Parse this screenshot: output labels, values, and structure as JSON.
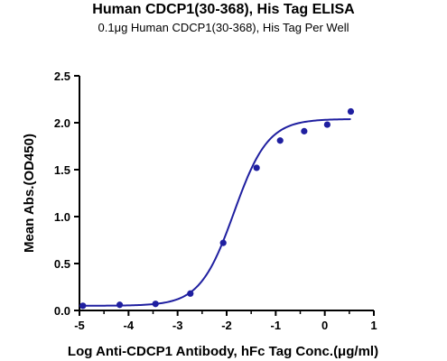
{
  "chart_data": {
    "type": "scatter",
    "title": "Human CDCP1(30-368), His Tag ELISA",
    "subtitle": "0.1μg Human CDCP1(30-368), His Tag Per Well",
    "xlabel": "Log Anti-CDCP1 Antibody, hFc Tag Conc.(μg/ml)",
    "ylabel": "Mean Abs.(OD450)",
    "xlim": [
      -5,
      1
    ],
    "ylim": [
      0,
      2.5
    ],
    "x_ticks": [
      -5,
      -4,
      -3,
      -2,
      -1,
      0,
      1
    ],
    "x_tick_labels": [
      "-5",
      "-4",
      "-3",
      "-2",
      "-1",
      "0",
      "1"
    ],
    "y_ticks": [
      0,
      0.5,
      1.0,
      1.5,
      2.0,
      2.5
    ],
    "y_tick_labels": [
      "0.0",
      "0.5",
      "1.0",
      "1.5",
      "2.0",
      "2.5"
    ],
    "grid": false,
    "color": "#1f1fa0",
    "series": [
      {
        "points": [
          {
            "x": -4.93,
            "y": 0.05
          },
          {
            "x": -4.18,
            "y": 0.06
          },
          {
            "x": -3.45,
            "y": 0.07
          },
          {
            "x": -2.74,
            "y": 0.18
          },
          {
            "x": -2.07,
            "y": 0.72
          },
          {
            "x": -1.39,
            "y": 1.52
          },
          {
            "x": -0.91,
            "y": 1.81
          },
          {
            "x": -0.42,
            "y": 1.91
          },
          {
            "x": 0.05,
            "y": 1.98
          },
          {
            "x": 0.53,
            "y": 2.12
          }
        ],
        "fit": {
          "model": "4PL",
          "bottom": 0.05,
          "top": 2.04,
          "log_ec50": -1.85,
          "hill_slope": 1.25,
          "x_range": [
            -5,
            0.53
          ]
        }
      }
    ]
  }
}
